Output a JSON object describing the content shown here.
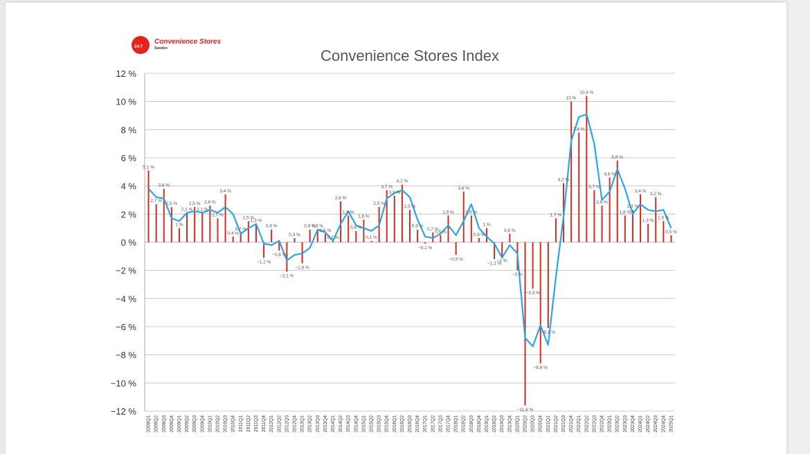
{
  "logo": {
    "mark_text": "24-7",
    "name": "Convenience Stores",
    "sub": "Sweden"
  },
  "chart_data": {
    "type": "bar",
    "title": "Convenience Stores Index",
    "ylim": [
      -12,
      12
    ],
    "yticks": [
      -12,
      -10,
      -8,
      -6,
      -4,
      -2,
      0,
      2,
      4,
      6,
      8,
      10,
      12
    ],
    "ytick_labels": [
      "−12 %",
      "−10 %",
      "−8 %",
      "−6 %",
      "−4 %",
      "−2 %",
      "0 %",
      "2 %",
      "4 %",
      "6 %",
      "8 %",
      "10 %",
      "12 %"
    ],
    "grid": true,
    "bar_color": "#d62a1e",
    "line_color": "#2aa5e6",
    "categories": [
      "2008Q1",
      "2008Q2",
      "2008Q3",
      "2008Q4",
      "2009Q1",
      "2009Q2",
      "2009Q3",
      "2009Q4",
      "2010Q1",
      "2010Q2",
      "2010Q3",
      "2010Q4",
      "2011Q1",
      "2011Q2",
      "2011Q3",
      "2011Q4",
      "2012Q1",
      "2012Q2",
      "2012Q3",
      "2012Q4",
      "2013Q1",
      "2013Q2",
      "2013Q3",
      "2013Q4",
      "2014Q1",
      "2014Q2",
      "2014Q3",
      "2014Q4",
      "2015Q1",
      "2015Q2",
      "2015Q3",
      "2015Q4",
      "2016Q1",
      "2016Q2",
      "2016Q3",
      "2016Q4",
      "2017Q1",
      "2017Q2",
      "2017Q3",
      "2017Q4",
      "2018Q1",
      "2018Q2",
      "2018Q3",
      "2018Q4",
      "2019Q1",
      "2019Q2",
      "2019Q3",
      "2019Q4",
      "2020Q1",
      "2020Q2",
      "2020Q3",
      "2020Q4",
      "2021Q1",
      "2021Q2",
      "2021Q3",
      "2021Q4",
      "2022Q1",
      "2022Q2",
      "2022Q3",
      "2022Q4",
      "2023Q1",
      "2023Q2",
      "2023Q3",
      "2023Q4",
      "2024Q1",
      "2024Q2",
      "2024Q3",
      "2024Q4",
      "2025Q1"
    ],
    "xtick_labels": [
      "2008Q1",
      "2008Q2",
      "2008Q3",
      "2008Q4",
      "2009Q1",
      "2009Q2",
      "2009Q3",
      "2009Q4",
      "2010Q1",
      "2010Q2",
      "2010Q3",
      "2010Q4",
      "2011Q1",
      "2011Q2",
      "2011Q3",
      "2011Q4",
      "2012Q1",
      "2012Q2",
      "2012Q3",
      "2012Q4",
      "2013Q1",
      "2013Q2",
      "2013Q3",
      "2013Q4",
      "2014Q1",
      "2014Q2",
      "2014Q3",
      "2014Q4",
      "2015Q1",
      "2015Q2",
      "2015Q3",
      "2015Q4",
      "2016Q1",
      "2016Q2",
      "2016Q3",
      "2016Q4",
      "2017Q1",
      "2017Q2",
      "2017Q3",
      "2017Q4",
      "2018Q1",
      "2018Q2",
      "2018Q3",
      "2018Q4",
      "2019Q1",
      "2019Q2",
      "2019Q3",
      "2019Q4",
      "2020Q1",
      "2020Q2",
      "2020Q3",
      "2020Q4",
      "2021Q1",
      "2021Q2",
      "2021Q3",
      "2021Q4",
      "2022Q1",
      "2022Q2",
      "2022Q3",
      "2022Q4",
      "2023Q1",
      "2023Q2",
      "2023Q3",
      "2023Q4",
      "2024Q1",
      "2024Q2",
      "2024Q3",
      "2024Q4",
      "2025Q1"
    ],
    "bars": [
      {
        "cat": "2008Q1",
        "value": 5.1,
        "label": "5,1 %"
      },
      {
        "cat": "2008Q2",
        "value": 2.7,
        "label": "2,7 %"
      },
      {
        "cat": "2008Q3",
        "value": 3.8,
        "label": "3,8 %"
      },
      {
        "cat": "2008Q4",
        "value": 2.5,
        "label": "2,5 %"
      },
      {
        "cat": "2009Q1",
        "value": 1.0,
        "label": "1 %"
      },
      {
        "cat": "2009Q2",
        "value": 2.1,
        "label": "2,1 %"
      },
      {
        "cat": "2009Q3",
        "value": 2.5,
        "label": "2,5 %"
      },
      {
        "cat": "2009Q4",
        "value": 2.1,
        "label": "2,1 %"
      },
      {
        "cat": "2010Q1",
        "value": 2.6,
        "label": "2,6 %"
      },
      {
        "cat": "2010Q2",
        "value": 1.7,
        "label": "1,7 %"
      },
      {
        "cat": "2010Q3",
        "value": 3.4,
        "label": "3,4 %"
      },
      {
        "cat": "2010Q4",
        "value": 0.4,
        "label": "0,4 %"
      },
      {
        "cat": "2011Q1",
        "value": 0.7,
        "label": "0,7 %"
      },
      {
        "cat": "2011Q2",
        "value": 1.5,
        "label": "1,5 %"
      },
      {
        "cat": "2011Q3",
        "value": 1.3,
        "label": "1,3 %"
      },
      {
        "cat": "2011Q4",
        "value": -1.1,
        "label": "−1,1 %"
      },
      {
        "cat": "2012Q1",
        "value": 0.9,
        "label": "0,9 %"
      },
      {
        "cat": "2012Q2",
        "value": -0.6,
        "label": "−0,6 %"
      },
      {
        "cat": "2012Q3",
        "value": -2.1,
        "label": "−2,1 %"
      },
      {
        "cat": "2012Q4",
        "value": 0.3,
        "label": "0,3 %"
      },
      {
        "cat": "2013Q1",
        "value": -1.5,
        "label": "−1,5 %"
      },
      {
        "cat": "2013Q2",
        "value": 0.9,
        "label": "0,9 %"
      },
      {
        "cat": "2013Q3",
        "value": 0.9,
        "label": "0,9 %"
      },
      {
        "cat": "2013Q4",
        "value": 0.6,
        "label": "0,6 %"
      },
      {
        "cat": "2014Q1",
        "value": 0.1,
        "label": "0,1 %"
      },
      {
        "cat": "2014Q2",
        "value": 2.9,
        "label": "2,9 %"
      },
      {
        "cat": "2014Q3",
        "value": 1.9,
        "label": "1,9 %"
      },
      {
        "cat": "2014Q4",
        "value": 0.8,
        "label": "0,8 %"
      },
      {
        "cat": "2015Q1",
        "value": 1.6,
        "label": "1,6 %"
      },
      {
        "cat": "2015Q2",
        "value": 0.1,
        "label": "0,1 %"
      },
      {
        "cat": "2015Q3",
        "value": 2.5,
        "label": "2,5 %"
      },
      {
        "cat": "2015Q4",
        "value": 3.7,
        "label": "3,7 %"
      },
      {
        "cat": "2016Q1",
        "value": 3.3,
        "label": "3,3 %"
      },
      {
        "cat": "2016Q2",
        "value": 4.1,
        "label": "4,1 %"
      },
      {
        "cat": "2016Q3",
        "value": 2.3,
        "label": "2,3 %"
      },
      {
        "cat": "2016Q4",
        "value": 0.9,
        "label": "0,9 %"
      },
      {
        "cat": "2017Q1",
        "value": -0.1,
        "label": "−0,1 %"
      },
      {
        "cat": "2017Q2",
        "value": 0.7,
        "label": "0,7 %"
      },
      {
        "cat": "2017Q3",
        "value": 0.5,
        "label": "0,5 %"
      },
      {
        "cat": "2017Q4",
        "value": 1.9,
        "label": "1,9 %"
      },
      {
        "cat": "2018Q1",
        "value": -0.9,
        "label": "−0,9 %"
      },
      {
        "cat": "2018Q2",
        "value": 3.6,
        "label": "3,6 %"
      },
      {
        "cat": "2018Q3",
        "value": 1.9,
        "label": "1,9 %"
      },
      {
        "cat": "2018Q4",
        "value": 0.3,
        "label": "0,3 %"
      },
      {
        "cat": "2019Q1",
        "value": 1.0,
        "label": "1 %"
      },
      {
        "cat": "2019Q2",
        "value": -1.2,
        "label": "−1,2 %"
      },
      {
        "cat": "2019Q3",
        "value": -1.0,
        "label": "−1 %"
      },
      {
        "cat": "2019Q4",
        "value": 0.6,
        "label": "0,6 %"
      },
      {
        "cat": "2020Q1",
        "value": -2.0,
        "label": "−2 %"
      },
      {
        "cat": "2020Q2",
        "value": -11.6,
        "label": "−11,6 %"
      },
      {
        "cat": "2020Q3",
        "value": -3.3,
        "label": "−3,3 %"
      },
      {
        "cat": "2020Q4",
        "value": -8.6,
        "label": "−8,6 %"
      },
      {
        "cat": "2021Q1",
        "value": -6.1,
        "label": "−6,1 %"
      },
      {
        "cat": "2021Q2",
        "value": 1.7,
        "label": "1,7 %"
      },
      {
        "cat": "2021Q3",
        "value": 4.2,
        "label": "4,2 %"
      },
      {
        "cat": "2021Q4",
        "value": 10.0,
        "label": "10 %"
      },
      {
        "cat": "2022Q1",
        "value": 7.8,
        "label": "7,8 %"
      },
      {
        "cat": "2022Q2",
        "value": 10.4,
        "label": "10,4 %"
      },
      {
        "cat": "2022Q3",
        "value": 3.7,
        "label": "3,7 %"
      },
      {
        "cat": "2022Q4",
        "value": 2.6,
        "label": "2,6 %"
      },
      {
        "cat": "2023Q1",
        "value": 4.6,
        "label": "4,6 %"
      },
      {
        "cat": "2023Q2",
        "value": 5.8,
        "label": "5,8 %"
      },
      {
        "cat": "2023Q3",
        "value": 1.9,
        "label": "1,9 %"
      },
      {
        "cat": "2023Q4",
        "value": 2.3,
        "label": "2,3 %"
      },
      {
        "cat": "2024Q1",
        "value": 3.4,
        "label": "3,4 %"
      },
      {
        "cat": "2024Q2",
        "value": 1.3,
        "label": "1,3 %"
      },
      {
        "cat": "2024Q3",
        "value": 3.2,
        "label": "3,2 %"
      },
      {
        "cat": "2024Q4",
        "value": 1.5,
        "label": "1,5 %"
      },
      {
        "cat": "2025Q1",
        "value": 0.5,
        "label": "0,5 %"
      }
    ],
    "line_values": [
      3.8,
      3.2,
      3.1,
      1.7,
      1.5,
      2.1,
      2.2,
      2.1,
      2.3,
      2.1,
      2.5,
      2.0,
      0.6,
      1.0,
      1.3,
      -0.1,
      -0.2,
      0.1,
      -1.3,
      -0.9,
      -0.8,
      -0.4,
      0.9,
      0.7,
      0.1,
      1.3,
      2.2,
      1.2,
      1.0,
      0.8,
      1.2,
      3.1,
      3.5,
      3.7,
      3.2,
      1.6,
      0.4,
      0.3,
      0.6,
      1.2,
      0.5,
      1.5,
      2.7,
      1.0,
      0.4,
      -0.1,
      -1.1,
      -0.2,
      -0.8,
      -6.8,
      -7.4,
      -5.9,
      -7.3,
      -2.5,
      1.8,
      7.2,
      8.9,
      9.1,
      7.0,
      3.0,
      3.6,
      5.2,
      3.8,
      2.0,
      2.7,
      2.3,
      2.2,
      2.3,
      1.0
    ]
  }
}
